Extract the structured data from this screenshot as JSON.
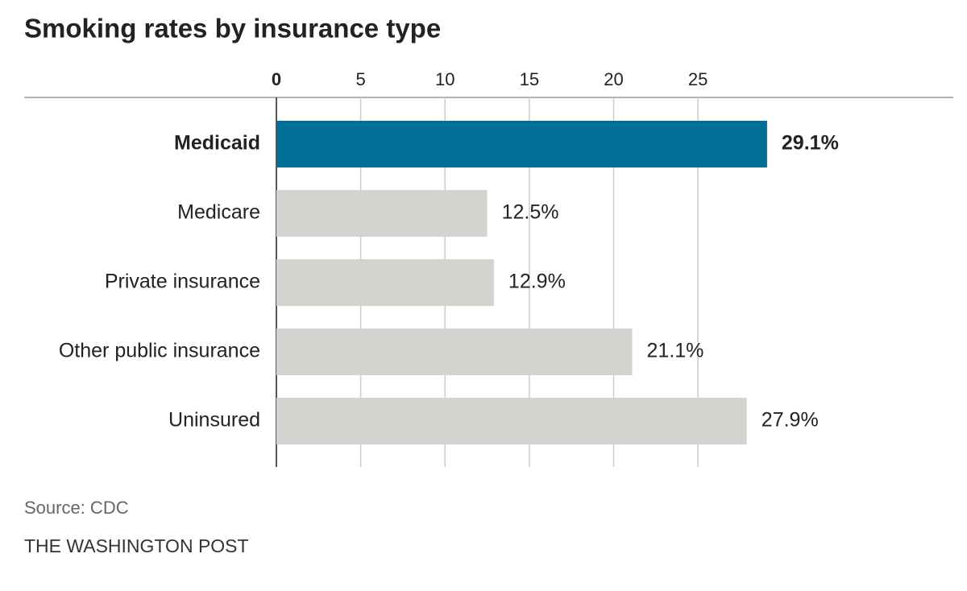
{
  "chart_data": {
    "type": "hbar",
    "title": "Smoking rates by insurance type",
    "categories": [
      "Medicaid",
      "Medicare",
      "Private insurance",
      "Other public insurance",
      "Uninsured"
    ],
    "values": [
      29.1,
      12.5,
      12.9,
      21.1,
      27.9
    ],
    "value_labels": [
      "29.1%",
      "12.5%",
      "12.9%",
      "21.1%",
      "27.9%"
    ],
    "color": "#d3d3cf",
    "highlight_color": "#006f98",
    "highlight": "Medicaid",
    "xlim": [
      0,
      40
    ],
    "xticks": [
      0,
      5,
      10,
      15,
      20,
      25
    ],
    "grid": true,
    "source": "Source: CDC",
    "credit": "THE WASHINGTON POST"
  }
}
